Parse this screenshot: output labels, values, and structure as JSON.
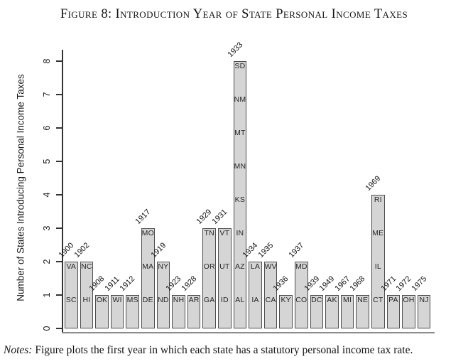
{
  "title": "Figure 8: Introduction Year of State Personal Income Taxes",
  "notes": {
    "label": "Notes:",
    "text": " Figure plots the first year in which each state has a statutory personal income tax rate."
  },
  "colors": {
    "bar_fill": "#d5d5d5",
    "bar_border": "#4e4e4e",
    "x_axis_line": "#8c8c8c",
    "y_axis_line": "#333333",
    "text": "#1a1a1a"
  },
  "chart_data": {
    "type": "bar",
    "title": "Figure 8: Introduction Year of State Personal Income Taxes",
    "ylabel": "Number of States Introducing Personal Income Taxes",
    "xlabel": "",
    "ylim": [
      0,
      8
    ],
    "yticks": [
      0,
      1,
      2,
      3,
      4,
      5,
      6,
      7,
      8
    ],
    "grid": false,
    "legend": false,
    "bar_year_label_rotation_deg": -45,
    "bars": [
      {
        "year": "1900",
        "count": 2,
        "states_bottom_to_top": [
          "SC",
          "VA"
        ]
      },
      {
        "year": "1902",
        "count": 2,
        "states_bottom_to_top": [
          "HI",
          "NC"
        ]
      },
      {
        "year": "1908",
        "count": 1,
        "states_bottom_to_top": [
          "OK"
        ]
      },
      {
        "year": "1911",
        "count": 1,
        "states_bottom_to_top": [
          "WI"
        ]
      },
      {
        "year": "1912",
        "count": 1,
        "states_bottom_to_top": [
          "MS"
        ]
      },
      {
        "year": "1917",
        "count": 3,
        "states_bottom_to_top": [
          "DE",
          "MA",
          "MO"
        ]
      },
      {
        "year": "1919",
        "count": 2,
        "states_bottom_to_top": [
          "ND",
          "NY"
        ]
      },
      {
        "year": "1923",
        "count": 1,
        "states_bottom_to_top": [
          "NH"
        ]
      },
      {
        "year": "1928",
        "count": 1,
        "states_bottom_to_top": [
          "AR"
        ]
      },
      {
        "year": "1929",
        "count": 3,
        "states_bottom_to_top": [
          "GA",
          "OR",
          "TN"
        ]
      },
      {
        "year": "1931",
        "count": 3,
        "states_bottom_to_top": [
          "ID",
          "UT",
          "VT"
        ]
      },
      {
        "year": "1933",
        "count": 8,
        "states_bottom_to_top": [
          "AL",
          "AZ",
          "IN",
          "KS",
          "MN",
          "MT",
          "NM",
          "SD"
        ]
      },
      {
        "year": "1934",
        "count": 2,
        "states_bottom_to_top": [
          "IA",
          "LA"
        ]
      },
      {
        "year": "1935",
        "count": 2,
        "states_bottom_to_top": [
          "CA",
          "WV"
        ]
      },
      {
        "year": "1936",
        "count": 1,
        "states_bottom_to_top": [
          "KY"
        ]
      },
      {
        "year": "1937",
        "count": 2,
        "states_bottom_to_top": [
          "CO",
          "MD"
        ]
      },
      {
        "year": "1939",
        "count": 1,
        "states_bottom_to_top": [
          "DC"
        ]
      },
      {
        "year": "1949",
        "count": 1,
        "states_bottom_to_top": [
          "AK"
        ]
      },
      {
        "year": "1967",
        "count": 1,
        "states_bottom_to_top": [
          "MI"
        ]
      },
      {
        "year": "1968",
        "count": 1,
        "states_bottom_to_top": [
          "NE"
        ]
      },
      {
        "year": "1969",
        "count": 4,
        "states_bottom_to_top": [
          "CT",
          "IL",
          "ME",
          "RI"
        ]
      },
      {
        "year": "1971",
        "count": 1,
        "states_bottom_to_top": [
          "PA"
        ]
      },
      {
        "year": "1972",
        "count": 1,
        "states_bottom_to_top": [
          "OH"
        ]
      },
      {
        "year": "1975",
        "count": 1,
        "states_bottom_to_top": [
          "NJ"
        ]
      }
    ]
  }
}
